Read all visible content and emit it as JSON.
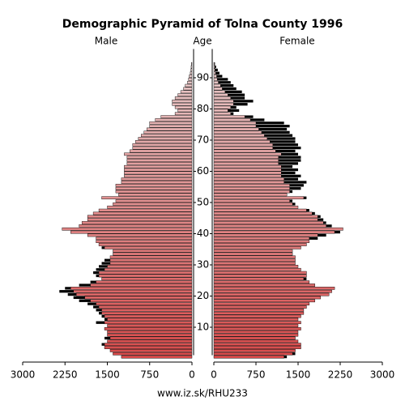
{
  "chart_data": {
    "type": "pyramid",
    "title": "Demographic Pyramid of Tolna County 1996",
    "y_label": "Age",
    "footer": "www.iz.sk/RHU233",
    "categories": [
      0,
      1,
      2,
      3,
      4,
      5,
      6,
      7,
      8,
      9,
      10,
      11,
      12,
      13,
      14,
      15,
      16,
      17,
      18,
      19,
      20,
      21,
      22,
      23,
      24,
      25,
      26,
      27,
      28,
      29,
      30,
      31,
      32,
      33,
      34,
      35,
      36,
      37,
      38,
      39,
      40,
      41,
      42,
      43,
      44,
      45,
      46,
      47,
      48,
      49,
      50,
      51,
      52,
      53,
      54,
      55,
      56,
      57,
      58,
      59,
      60,
      61,
      62,
      63,
      64,
      65,
      66,
      67,
      68,
      69,
      70,
      71,
      72,
      73,
      74,
      75,
      76,
      77,
      78,
      79,
      80,
      81,
      82,
      83,
      84,
      85,
      86,
      87,
      88,
      89,
      90,
      91,
      92,
      93,
      94
    ],
    "series": [
      {
        "name": "Male",
        "values": [
          1250,
          1400,
          1450,
          1550,
          1600,
          1500,
          1550,
          1500,
          1500,
          1550,
          1500,
          1700,
          1550,
          1600,
          1650,
          1700,
          1750,
          1850,
          2000,
          2100,
          2200,
          2350,
          2250,
          2000,
          1800,
          1600,
          1700,
          1750,
          1700,
          1650,
          1600,
          1550,
          1450,
          1400,
          1400,
          1600,
          1650,
          1700,
          1700,
          1850,
          2150,
          2300,
          2000,
          1950,
          1850,
          1850,
          1750,
          1650,
          1500,
          1400,
          1350,
          1600,
          1300,
          1350,
          1350,
          1350,
          1250,
          1250,
          1200,
          1200,
          1200,
          1200,
          1150,
          1150,
          1150,
          1200,
          1100,
          1050,
          1050,
          1000,
          950,
          900,
          850,
          800,
          750,
          750,
          650,
          550,
          300,
          250,
          300,
          350,
          350,
          300,
          250,
          200,
          150,
          120,
          80,
          60,
          50,
          30,
          20,
          15,
          10
        ]
      },
      {
        "name": "Female",
        "values": [
          1300,
          1450,
          1450,
          1550,
          1550,
          1500,
          1450,
          1500,
          1500,
          1550,
          1500,
          1550,
          1500,
          1550,
          1600,
          1600,
          1650,
          1700,
          1800,
          1900,
          2050,
          2100,
          2150,
          1800,
          1700,
          1650,
          1650,
          1650,
          1550,
          1500,
          1450,
          1450,
          1450,
          1400,
          1400,
          1550,
          1650,
          1700,
          1850,
          2000,
          2250,
          2300,
          2100,
          2000,
          1950,
          1900,
          1800,
          1700,
          1500,
          1450,
          1400,
          1650,
          1300,
          1400,
          1550,
          1600,
          1650,
          1500,
          1550,
          1450,
          1500,
          1400,
          1500,
          1550,
          1550,
          1500,
          1450,
          1550,
          1500,
          1450,
          1450,
          1400,
          1350,
          1300,
          1350,
          1250,
          900,
          700,
          350,
          450,
          400,
          600,
          700,
          550,
          550,
          500,
          400,
          350,
          300,
          250,
          150,
          100,
          70,
          40,
          20
        ]
      }
    ],
    "xlim": [
      0,
      3000
    ],
    "xticks": [
      0,
      750,
      1500,
      2250,
      3000
    ],
    "ylim": [
      0,
      100
    ],
    "yticks": [
      10,
      20,
      30,
      40,
      50,
      60,
      70,
      80,
      90
    ],
    "gradient": [
      "#d84a4a",
      "#e8d4d4"
    ],
    "excess_color": "#000000"
  }
}
